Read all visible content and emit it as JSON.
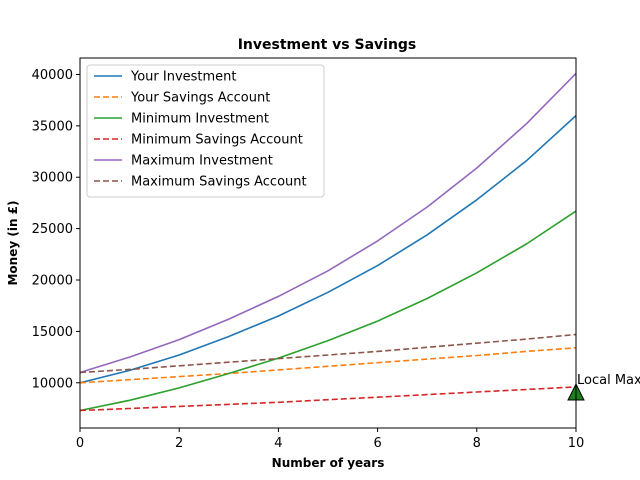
{
  "chart_data": {
    "type": "line",
    "title": "Investment vs Savings",
    "xlabel": "Number of years",
    "ylabel": "Money (in £)",
    "xlim": [
      0,
      10
    ],
    "ylim": [
      5600,
      41600
    ],
    "x": [
      0,
      1,
      2,
      3,
      4,
      5,
      6,
      7,
      8,
      9,
      10
    ],
    "xticks": [
      0,
      2,
      4,
      6,
      8,
      10
    ],
    "yticks": [
      10000,
      15000,
      20000,
      25000,
      30000,
      35000,
      40000
    ],
    "grid": false,
    "legend_position": "top-left",
    "series": [
      {
        "name": "Your Investment",
        "color": "#1f77b4",
        "dash": "solid",
        "values": [
          10000,
          11200,
          12700,
          14500,
          16500,
          18800,
          21400,
          24400,
          27800,
          31600,
          36000
        ]
      },
      {
        "name": "Your Savings Account",
        "color": "#ff7f0e",
        "dash": "dashed",
        "values": [
          10000,
          10300,
          10600,
          10900,
          11250,
          11600,
          11950,
          12300,
          12650,
          13050,
          13400
        ]
      },
      {
        "name": "Minimum Investment",
        "color": "#2ca02c",
        "dash": "solid",
        "values": [
          7300,
          8300,
          9500,
          10900,
          12400,
          14100,
          16000,
          18200,
          20700,
          23500,
          26700
        ]
      },
      {
        "name": "Minimum Savings Account",
        "color": "#d62728",
        "dash": "dashed",
        "values": [
          7300,
          7500,
          7700,
          7900,
          8100,
          8350,
          8600,
          8850,
          9100,
          9350,
          9600
        ]
      },
      {
        "name": "Maximum Investment",
        "color": "#9467bd",
        "dash": "solid",
        "values": [
          11000,
          12500,
          14200,
          16200,
          18400,
          20900,
          23800,
          27100,
          30900,
          35200,
          40100
        ]
      },
      {
        "name": "Maximum Savings Account",
        "color": "#8c564b",
        "dash": "dashed",
        "values": [
          11000,
          11300,
          11650,
          12000,
          12350,
          12700,
          13050,
          13450,
          13850,
          14250,
          14700
        ]
      }
    ],
    "annotation": {
      "text": "Local Max",
      "x": 10,
      "y": 9000,
      "marker": "triangle",
      "color": "#1a7f1a"
    }
  }
}
